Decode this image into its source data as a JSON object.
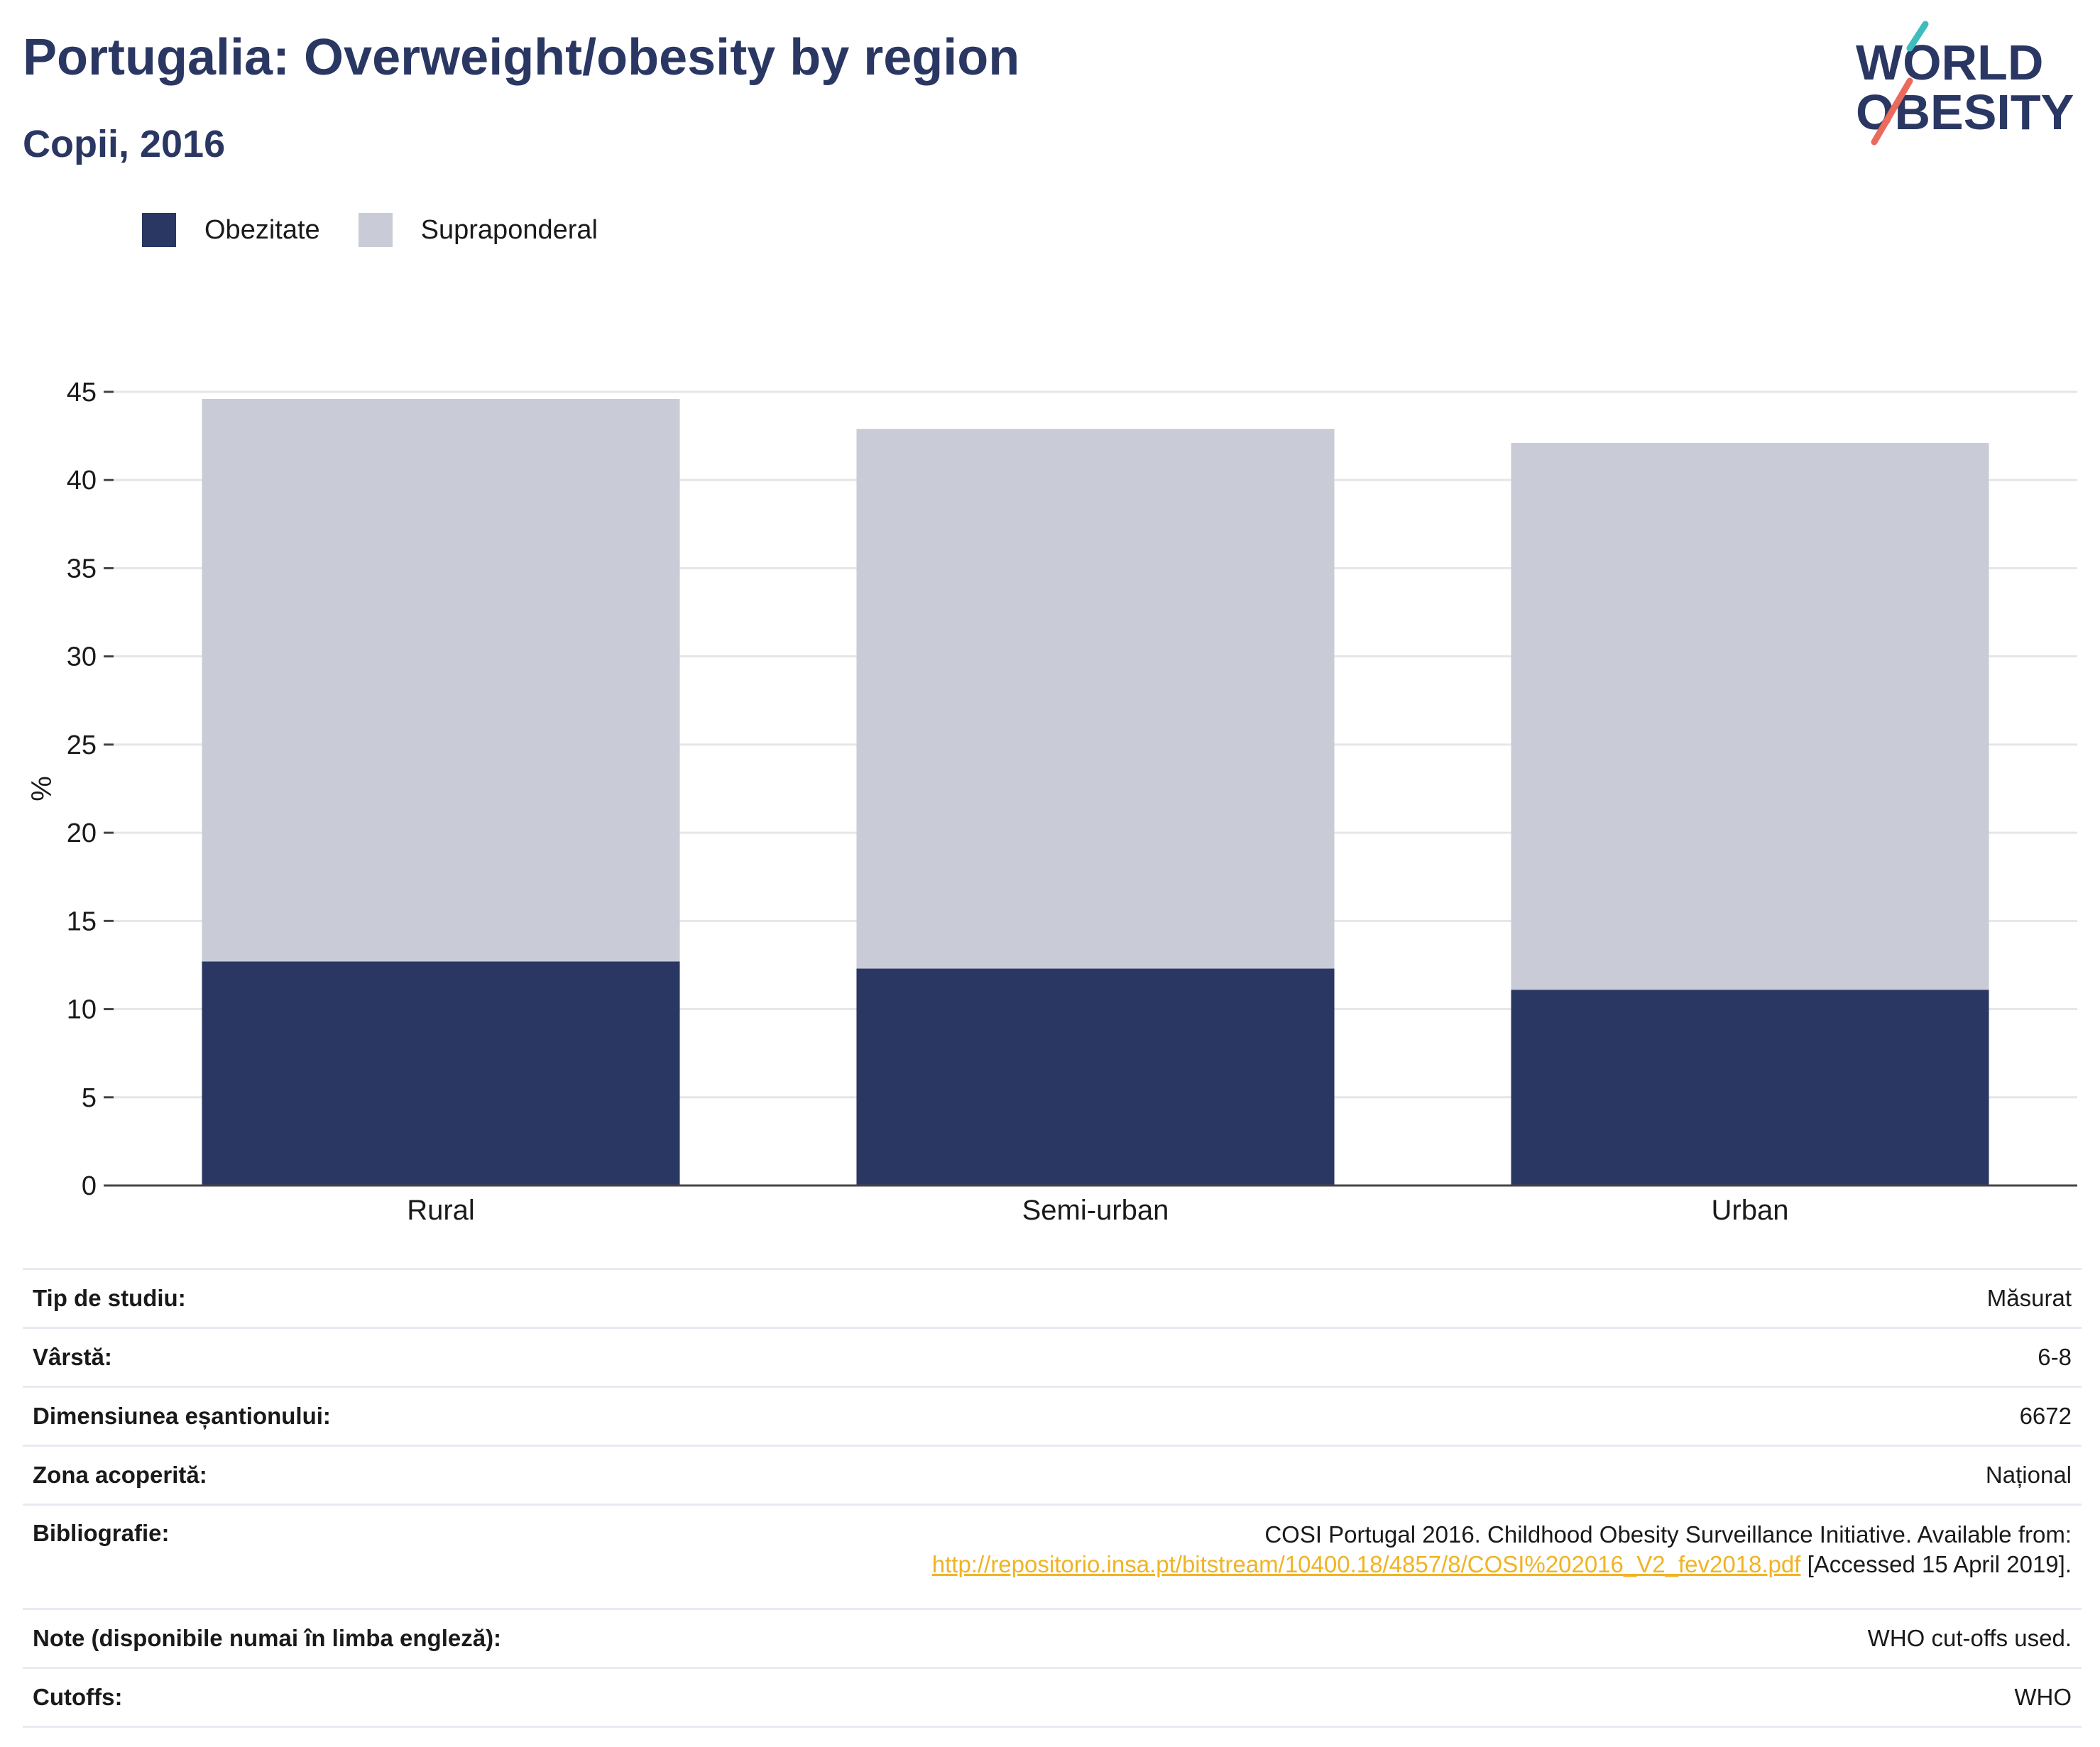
{
  "header": {
    "title": "Portugalia: Overweight/obesity by region",
    "subtitle": "Copii, 2016"
  },
  "logo": {
    "line1": "WORLD",
    "line2": "OBESITY",
    "colors": {
      "navy": "#2a3763",
      "teal": "#3dbdbd",
      "coral": "#ec6a5c"
    }
  },
  "legend": {
    "items": [
      {
        "label": "Obezitate",
        "color": "#2a3763"
      },
      {
        "label": "Supraponderal",
        "color": "#c9cbd6"
      }
    ]
  },
  "chart_data": {
    "type": "bar",
    "stacked": true,
    "categories": [
      "Rural",
      "Semi-urban",
      "Urban"
    ],
    "series": [
      {
        "name": "Obezitate",
        "color": "#2a3763",
        "values": [
          12.7,
          12.3,
          11.1
        ]
      },
      {
        "name": "Supraponderal",
        "color": "#c9cbd6",
        "values": [
          31.9,
          30.6,
          31.0
        ]
      }
    ],
    "ylabel": "%",
    "ylim": [
      0,
      45
    ],
    "yticks": [
      0,
      5,
      10,
      15,
      20,
      25,
      30,
      35,
      40,
      45
    ],
    "grid": true,
    "legend_position": "top-left"
  },
  "details": {
    "study_type": {
      "label": "Tip de studiu:",
      "value": "Măsurat"
    },
    "age": {
      "label": "Vârstă:",
      "value": "6-8"
    },
    "sample_size": {
      "label": "Dimensiunea eșantionului:",
      "value": "6672"
    },
    "area": {
      "label": "Zona acoperită:",
      "value": "Național"
    },
    "bibliography": {
      "label": "Bibliografie:",
      "text_1": "COSI Portugal 2016. Childhood Obesity Surveillance Initiative. Available from:",
      "link": "http://repositorio.insa.pt/bitstream/10400.18/4857/8/COSI%202016_V2_fev2018.pdf",
      "text_2": " [Accessed 15 April 2019]."
    },
    "notes": {
      "label": "Note (disponibile numai în limba engleză):",
      "value": "WHO cut-offs used."
    },
    "cutoffs": {
      "label": "Cutoffs:",
      "value": "WHO"
    }
  }
}
